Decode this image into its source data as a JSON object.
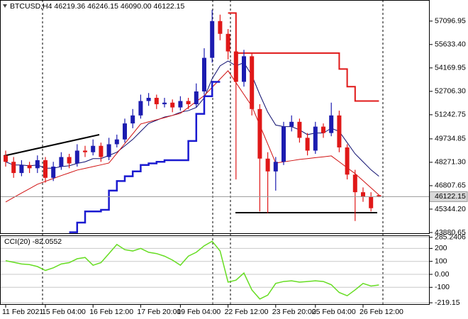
{
  "chart_data": {
    "type": "candlestick",
    "title": "BTCUSD,H4  46219.36 46246.15 46090.00 46122.15",
    "categories": [
      "11 Feb 2021",
      null,
      null,
      null,
      null,
      "15 Feb 04:00",
      null,
      null,
      null,
      null,
      null,
      "16 Feb 12:00",
      null,
      null,
      null,
      null,
      null,
      "17 Feb 20:00",
      null,
      null,
      null,
      null,
      "19 Feb 04:00",
      null,
      null,
      null,
      null,
      null,
      "22 Feb 12:00",
      null,
      null,
      null,
      null,
      null,
      "23 Feb 20:00",
      null,
      null,
      null,
      null,
      "25 Feb 04:00",
      null,
      null,
      null,
      null,
      null,
      "26 Feb 12:00",
      null,
      null
    ],
    "candles": {
      "open": [
        48700,
        48300,
        47600,
        48100,
        47900,
        48400,
        47300,
        48000,
        48600,
        48200,
        49000,
        48900,
        49300,
        48600,
        49400,
        49700,
        50700,
        51200,
        52100,
        52300,
        51900,
        52000,
        51700,
        52100,
        51900,
        52700,
        54800,
        57100,
        56300,
        55200,
        53300,
        54900,
        51600,
        48500,
        47700,
        48300,
        50500,
        50800,
        49800,
        49000,
        50500,
        50100,
        51200,
        49200,
        47500,
        46400,
        46100,
        46219.36
      ],
      "high": [
        49000,
        48600,
        48400,
        48300,
        48700,
        48600,
        48300,
        48900,
        48800,
        49400,
        49300,
        49700,
        49500,
        49800,
        50000,
        51000,
        51600,
        52500,
        52600,
        52500,
        52300,
        52200,
        52400,
        52300,
        53200,
        55400,
        57800,
        57500,
        56600,
        55400,
        55300,
        55100,
        51900,
        48900,
        48600,
        50800,
        51200,
        51000,
        50100,
        50800,
        50700,
        52000,
        51500,
        49400,
        47800,
        46700,
        46400,
        46246.15
      ],
      "low": [
        48000,
        47300,
        47400,
        47600,
        47600,
        47000,
        47100,
        47800,
        47900,
        48000,
        48600,
        48700,
        48300,
        48400,
        49200,
        49500,
        50400,
        51000,
        51800,
        51600,
        51700,
        51400,
        51500,
        51600,
        51700,
        52500,
        54500,
        55900,
        54700,
        47200,
        53000,
        51200,
        45200,
        45100,
        46500,
        48100,
        50200,
        49500,
        48700,
        48800,
        49800,
        49900,
        48900,
        47200,
        44600,
        45800,
        45200,
        46090
      ],
      "close": [
        48300,
        47600,
        48100,
        47900,
        48400,
        47300,
        48000,
        48600,
        48200,
        49000,
        48900,
        49300,
        48600,
        49400,
        49700,
        50700,
        51200,
        52100,
        52300,
        51900,
        52000,
        51700,
        52100,
        51900,
        52700,
        54800,
        57100,
        56300,
        55200,
        53300,
        54900,
        51600,
        48500,
        47700,
        48300,
        50500,
        50800,
        49800,
        49000,
        50500,
        50100,
        51200,
        49200,
        47500,
        46400,
        46100,
        45400,
        46122.15
      ],
      "up_color": "#1c1cb0",
      "down_color": "#e01818"
    },
    "series": [
      {
        "color": "#0c0c6e",
        "width": 1,
        "step": false,
        "values": [
          48300,
          48100,
          48100,
          48050,
          48100,
          47900,
          47900,
          48000,
          48050,
          48200,
          48300,
          48500,
          48500,
          48700,
          48900,
          49300,
          49700,
          50200,
          50700,
          50900,
          51100,
          51200,
          51400,
          51500,
          51700,
          52300,
          53500,
          54300,
          54600,
          54300,
          54500,
          53700,
          52500,
          51400,
          50600,
          50500,
          50500,
          50300,
          50000,
          50100,
          50100,
          50400,
          50200,
          49500,
          48800,
          48300,
          47800,
          47400
        ]
      },
      {
        "color": "#d01010",
        "width": 1,
        "step": false,
        "values": [
          45787,
          46070,
          46350,
          46620,
          46896,
          47080,
          47260,
          47440,
          47610,
          47783,
          47890,
          48000,
          48110,
          48226,
          48830,
          49440,
          50050,
          50666,
          50800,
          50930,
          51060,
          51200,
          51331,
          51700,
          52070,
          52440,
          52960,
          53480,
          53992,
          53250,
          52510,
          51775,
          50590,
          49410,
          48226,
          48300,
          48370,
          48448,
          48500,
          48560,
          48610,
          48670,
          48300,
          47930,
          47561,
          47120,
          46670,
          46230
        ]
      },
      {
        "color": "#1a1ad0",
        "width": 2.5,
        "step": true,
        "values": [
          null,
          null,
          null,
          null,
          null,
          null,
          null,
          null,
          43900,
          44500,
          45200,
          45200,
          45300,
          46500,
          47100,
          47400,
          47700,
          48100,
          48200,
          48300,
          48400,
          48400,
          48400,
          49600,
          51300,
          52400,
          53300,
          53300,
          null,
          null,
          null,
          null,
          null,
          null,
          null,
          null,
          null,
          null,
          null,
          null,
          null,
          null,
          null,
          null,
          null,
          null,
          null,
          null
        ]
      },
      {
        "color": "#e01818",
        "width": 2,
        "step": true,
        "values": [
          null,
          null,
          null,
          null,
          null,
          null,
          null,
          null,
          null,
          null,
          null,
          null,
          null,
          null,
          null,
          null,
          null,
          null,
          null,
          null,
          null,
          null,
          null,
          null,
          null,
          null,
          null,
          null,
          57600,
          55100,
          55100,
          55100,
          55100,
          55100,
          55100,
          55100,
          55100,
          55100,
          55100,
          55100,
          55100,
          55100,
          54100,
          53000,
          52100,
          52100,
          52100,
          52100
        ]
      }
    ],
    "ylim": [
      43880.65,
      58327
    ],
    "yticks": [
      57096.95,
      {
        "value": 55633.4,
        "label": "55633.40"
      },
      54169.95,
      {
        "value": 52706.3,
        "label": "52706.30"
      },
      51242.75,
      49734.85,
      {
        "value": 48271.3,
        "label": "48271.30"
      },
      46807.65,
      {
        "value": 45344.2,
        "label": "45344.20"
      },
      43880.65
    ],
    "cci": {
      "title": "CCI(20) -82.0552",
      "color": "#66dd22",
      "values": [
        105,
        93,
        80,
        75,
        60,
        30,
        50,
        80,
        90,
        120,
        130,
        70,
        90,
        160,
        230,
        190,
        180,
        200,
        170,
        160,
        140,
        110,
        70,
        140,
        170,
        220,
        255,
        180,
        -60,
        -45,
        10,
        -120,
        -190,
        -160,
        -70,
        -55,
        -50,
        -60,
        -55,
        -50,
        -55,
        -80,
        -140,
        -165,
        -120,
        -70,
        -90,
        -82.0552
      ],
      "ylim": [
        -224,
        295
      ],
      "yticks": [
        285.2406,
        200,
        100,
        {
          "value": 0,
          "label": "0.00"
        },
        -100,
        -219.15
      ]
    }
  }
}
